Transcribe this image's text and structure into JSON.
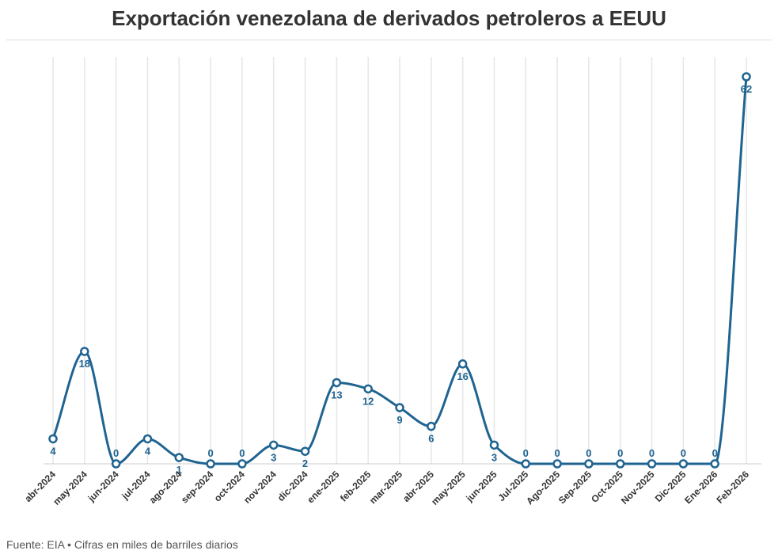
{
  "chart_data": {
    "type": "line",
    "title": "Exportación venezolana de derivados petroleros a EEUU",
    "xlabel": "",
    "ylabel": "",
    "categories": [
      "abr-2024",
      "may-2024",
      "jun-2024",
      "jul-2024",
      "ago-2024",
      "sep-2024",
      "oct-2024",
      "nov-2024",
      "dic-2024",
      "ene-2025",
      "feb-2025",
      "mar-2025",
      "abr-2025",
      "may-2025",
      "jun-2025",
      "Jul-2025",
      "Ago-2025",
      "Sep-2025",
      "Oct-2025",
      "Nov-2025",
      "Dic-2025",
      "Ene-2026",
      "Feb-2026"
    ],
    "values": [
      4,
      18,
      0,
      4,
      1,
      0,
      0,
      3,
      2,
      13,
      12,
      9,
      6,
      16,
      3,
      0,
      0,
      0,
      0,
      0,
      0,
      0,
      62
    ],
    "ylim": [
      0,
      62
    ],
    "grid": "vertical",
    "legend": "none",
    "line_color": "#1f6491"
  },
  "footer": {
    "source": "Fuente: EIA • Cifras en miles de barriles diarios"
  }
}
